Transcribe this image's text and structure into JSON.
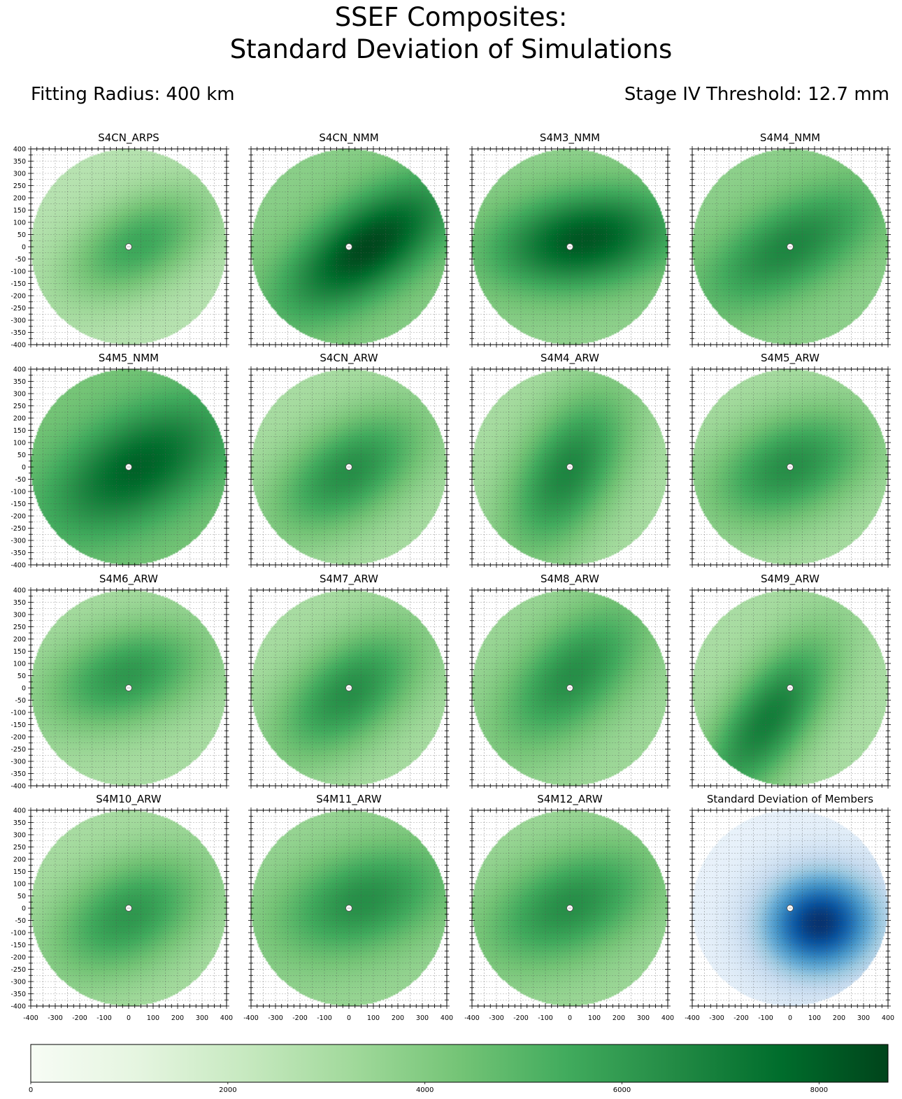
{
  "header": {
    "title_line1": "SSEF Composites:",
    "title_line2": "Standard Deviation of Simulations",
    "fitting_radius": "Fitting Radius: 400 km",
    "stage_threshold": "Stage IV Threshold: 12.7 mm"
  },
  "chart_data": {
    "type": "heatmap",
    "layout": {
      "rows": 4,
      "cols": 4
    },
    "xlim": [
      -400,
      400
    ],
    "ylim": [
      -400,
      400
    ],
    "xticks": [
      -400,
      -300,
      -200,
      -100,
      0,
      100,
      200,
      300,
      400
    ],
    "yticks": [
      400,
      350,
      300,
      250,
      200,
      150,
      100,
      50,
      0,
      -50,
      -100,
      -150,
      -200,
      -250,
      -300,
      -350,
      -400
    ],
    "grid": true,
    "domain_radius": 400,
    "colorbar": {
      "orientation": "horizontal",
      "range": [
        0,
        8700
      ],
      "ticks": [
        0,
        2000,
        4000,
        6000,
        8000
      ],
      "colormap": "Greens"
    },
    "panels": [
      {
        "title": "S4CN_ARPS",
        "colormap": "Greens",
        "base": 2600,
        "peak": 5600,
        "peak_at": [
          40,
          10
        ],
        "spread": [
          230,
          130
        ],
        "angle": 30
      },
      {
        "title": "S4CN_NMM",
        "colormap": "Greens",
        "base": 3800,
        "peak": 8600,
        "peak_at": [
          80,
          0
        ],
        "spread": [
          280,
          130
        ],
        "angle": 35
      },
      {
        "title": "S4M3_NMM",
        "colormap": "Greens",
        "base": 3600,
        "peak": 8200,
        "peak_at": [
          60,
          30
        ],
        "spread": [
          270,
          140
        ],
        "angle": 10
      },
      {
        "title": "S4M4_NMM",
        "colormap": "Greens",
        "base": 3700,
        "peak": 6700,
        "peak_at": [
          0,
          0
        ],
        "spread": [
          280,
          130
        ],
        "angle": 30
      },
      {
        "title": "S4M5_NMM",
        "colormap": "Greens",
        "base": 4200,
        "peak": 7900,
        "peak_at": [
          40,
          0
        ],
        "spread": [
          280,
          150
        ],
        "angle": 30
      },
      {
        "title": "S4CN_ARW",
        "colormap": "Greens",
        "base": 3000,
        "peak": 6400,
        "peak_at": [
          0,
          -20
        ],
        "spread": [
          250,
          140
        ],
        "angle": 35
      },
      {
        "title": "S4M4_ARW",
        "colormap": "Greens",
        "base": 3000,
        "peak": 6700,
        "peak_at": [
          -10,
          -20
        ],
        "spread": [
          260,
          140
        ],
        "angle": 60
      },
      {
        "title": "S4M5_ARW",
        "colormap": "Greens",
        "base": 3000,
        "peak": 6400,
        "peak_at": [
          0,
          0
        ],
        "spread": [
          250,
          150
        ],
        "angle": 25
      },
      {
        "title": "S4M6_ARW",
        "colormap": "Greens",
        "base": 3000,
        "peak": 6100,
        "peak_at": [
          -10,
          50
        ],
        "spread": [
          240,
          140
        ],
        "angle": 20
      },
      {
        "title": "S4M7_ARW",
        "colormap": "Greens",
        "base": 3000,
        "peak": 6400,
        "peak_at": [
          0,
          -20
        ],
        "spread": [
          250,
          140
        ],
        "angle": 40
      },
      {
        "title": "S4M8_ARW",
        "colormap": "Greens",
        "base": 3300,
        "peak": 6400,
        "peak_at": [
          10,
          50
        ],
        "spread": [
          260,
          140
        ],
        "angle": 45
      },
      {
        "title": "S4M9_ARW",
        "colormap": "Greens",
        "base": 3000,
        "peak": 7000,
        "peak_at": [
          -90,
          -130
        ],
        "spread": [
          280,
          120
        ],
        "angle": 55
      },
      {
        "title": "S4M10_ARW",
        "colormap": "Greens",
        "base": 3000,
        "peak": 6100,
        "peak_at": [
          0,
          -30
        ],
        "spread": [
          240,
          150
        ],
        "angle": 30
      },
      {
        "title": "S4M11_ARW",
        "colormap": "Greens",
        "base": 3400,
        "peak": 6400,
        "peak_at": [
          60,
          30
        ],
        "spread": [
          260,
          150
        ],
        "angle": 20
      },
      {
        "title": "S4M12_ARW",
        "colormap": "Greens",
        "base": 3300,
        "peak": 6400,
        "peak_at": [
          0,
          10
        ],
        "spread": [
          260,
          150
        ],
        "angle": 25
      },
      {
        "title": "Standard Deviation of Members",
        "colormap": "Blues",
        "base": 600,
        "peak": 8600,
        "peak_at": [
          120,
          -60
        ],
        "spread": [
          170,
          150
        ],
        "angle": 10
      }
    ]
  }
}
